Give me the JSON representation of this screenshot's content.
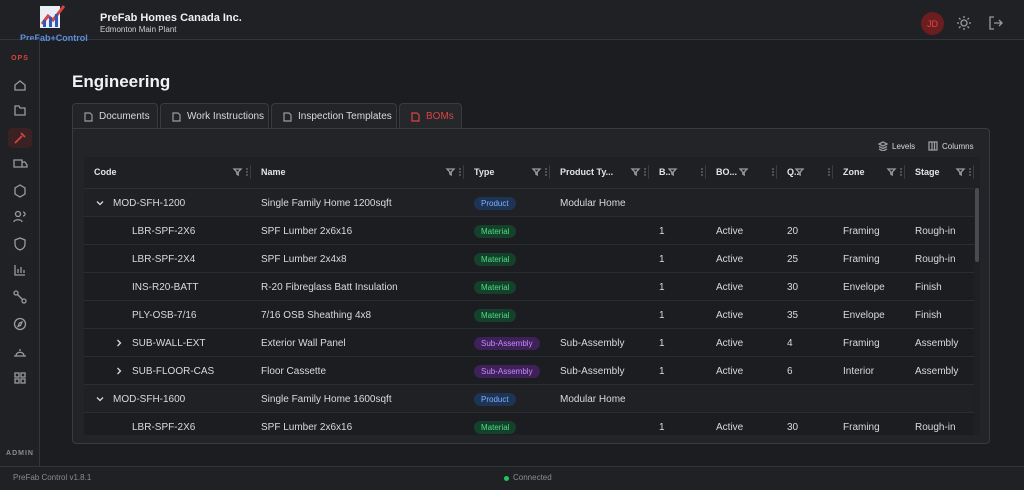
{
  "header": {
    "logo_text": "PreFab+Control",
    "org": "PreFab Homes Canada Inc.",
    "site": "Edmonton Main Plant",
    "avatar": "JD"
  },
  "sidebar": {
    "ops_label": "OPS",
    "admin_label": "ADMIN"
  },
  "page": {
    "title": "Engineering"
  },
  "tabs": [
    {
      "label": "Documents"
    },
    {
      "label": "Work Instructions"
    },
    {
      "label": "Inspection Templates"
    },
    {
      "label": "BOMs",
      "active": true
    }
  ],
  "toolbar": {
    "levels": "Levels",
    "columns": "Columns"
  },
  "table": {
    "columns": [
      "Code",
      "Name",
      "Type",
      "Product Ty...",
      "B..",
      "BO...",
      "Q..",
      "Zone",
      "Stage"
    ],
    "rows": [
      {
        "level": 0,
        "toggle": "open",
        "code": "MOD-SFH-1200",
        "name": "Single Family Home 1200sqft",
        "type": "Product",
        "tone": "product",
        "product_type": "Modular Home"
      },
      {
        "level": 1,
        "code": "LBR-SPF-2X6",
        "name": "SPF Lumber 2x6x16",
        "type": "Material",
        "tone": "material",
        "b": 1,
        "bom": "Active",
        "qty": 20,
        "zone": "Framing",
        "stage": "Rough-in"
      },
      {
        "level": 1,
        "code": "LBR-SPF-2X4",
        "name": "SPF Lumber 2x4x8",
        "type": "Material",
        "tone": "material",
        "b": 1,
        "bom": "Active",
        "qty": 25,
        "zone": "Framing",
        "stage": "Rough-in"
      },
      {
        "level": 1,
        "code": "INS-R20-BATT",
        "name": "R-20 Fibreglass Batt Insulation",
        "type": "Material",
        "tone": "material",
        "b": 1,
        "bom": "Active",
        "qty": 30,
        "zone": "Envelope",
        "stage": "Finish"
      },
      {
        "level": 1,
        "code": "PLY-OSB-7/16",
        "name": "7/16 OSB Sheathing 4x8",
        "type": "Material",
        "tone": "material",
        "b": 1,
        "bom": "Active",
        "qty": 35,
        "zone": "Envelope",
        "stage": "Finish"
      },
      {
        "level": 1,
        "toggle": "closed",
        "code": "SUB-WALL-EXT",
        "name": "Exterior Wall Panel",
        "type": "Sub-Assembly",
        "tone": "assembly",
        "product_type": "Sub-Assembly",
        "b": 1,
        "bom": "Active",
        "qty": 4,
        "zone": "Framing",
        "stage": "Assembly"
      },
      {
        "level": 1,
        "toggle": "closed",
        "code": "SUB-FLOOR-CAS",
        "name": "Floor Cassette",
        "type": "Sub-Assembly",
        "tone": "assembly",
        "product_type": "Sub-Assembly",
        "b": 1,
        "bom": "Active",
        "qty": 6,
        "zone": "Interior",
        "stage": "Assembly"
      },
      {
        "level": 0,
        "toggle": "open",
        "code": "MOD-SFH-1600",
        "name": "Single Family Home 1600sqft",
        "type": "Product",
        "tone": "product",
        "product_type": "Modular Home"
      },
      {
        "level": 1,
        "code": "LBR-SPF-2X6",
        "name": "SPF Lumber 2x6x16",
        "type": "Material",
        "tone": "material",
        "b": 1,
        "bom": "Active",
        "qty": 30,
        "zone": "Framing",
        "stage": "Rough-in"
      }
    ]
  },
  "footer": {
    "version": "PreFab Control v1.8.1",
    "status": "Connected"
  }
}
